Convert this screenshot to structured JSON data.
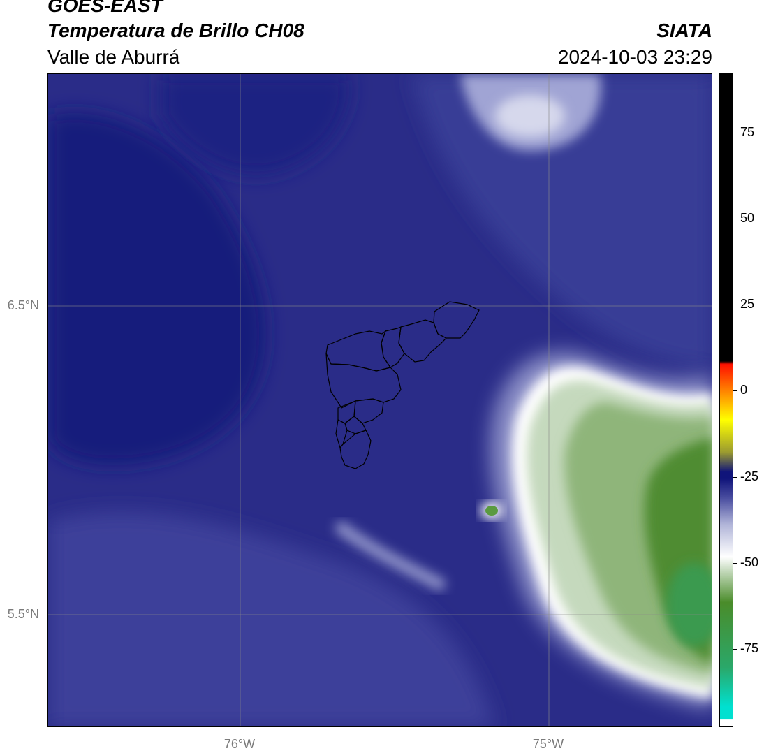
{
  "header": {
    "satellite": "GOES-EAST",
    "product": "Temperatura de Brillo CH08",
    "region": "Valle de Aburrá",
    "source": "SIATA",
    "timestamp": "2024-10-03 23:29"
  },
  "map": {
    "lat_labels": [
      "6.5°N",
      "5.5°N"
    ],
    "lon_labels": [
      "76°W",
      "75°W"
    ]
  },
  "colorbar": {
    "ticks": [
      "75",
      "50",
      "25",
      "0",
      "-25",
      "-50",
      "-75"
    ],
    "colors": {
      "cyan": "#00e0d0",
      "teal": "#2aa86a",
      "green": "#4a8c2a",
      "pale_green": "#c8dcc0",
      "white": "#ffffff",
      "light_blue": "#b0b4d8",
      "mid_blue": "#4a4ea0",
      "navy": "#10147a",
      "olive": "#9a9a30",
      "yellow": "#ffff00",
      "orange": "#ff9000",
      "red": "#ff1000",
      "black": "#000000"
    }
  }
}
